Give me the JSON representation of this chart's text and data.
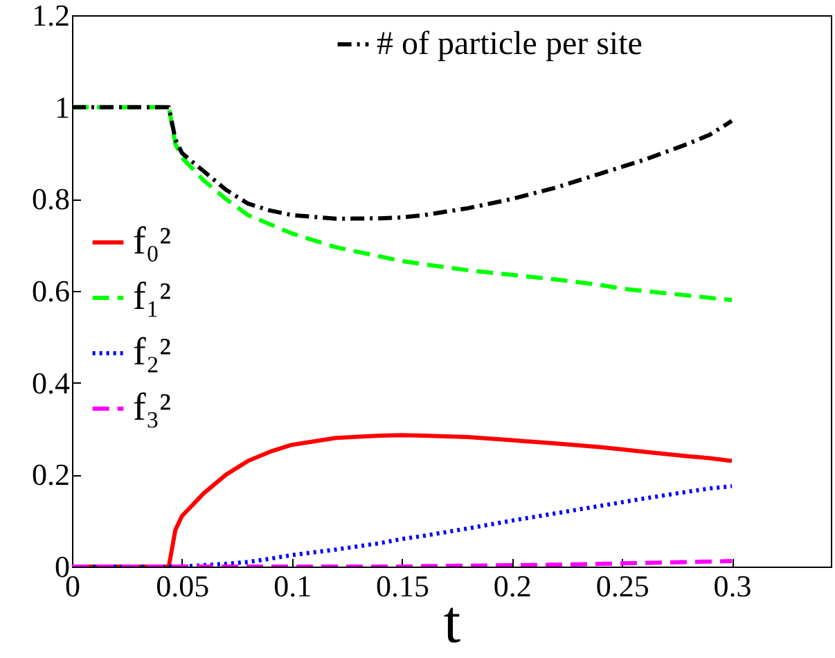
{
  "chart_data": {
    "type": "line",
    "xlabel": "t",
    "x": [
      0,
      0.02,
      0.044,
      0.047,
      0.05,
      0.06,
      0.07,
      0.08,
      0.09,
      0.1,
      0.12,
      0.14,
      0.15,
      0.16,
      0.18,
      0.2,
      0.22,
      0.24,
      0.25,
      0.26,
      0.28,
      0.29,
      0.3
    ],
    "series": [
      {
        "name": "f₀²",
        "color": "#ff0000",
        "line_style": "solid",
        "values": [
          0,
          0,
          0,
          0.08,
          0.11,
          0.16,
          0.2,
          0.23,
          0.25,
          0.265,
          0.28,
          0.285,
          0.286,
          0.285,
          0.282,
          0.275,
          0.268,
          0.26,
          0.255,
          0.25,
          0.24,
          0.236,
          0.23
        ]
      },
      {
        "name": "f₁²",
        "color": "#00ff00",
        "line_style": "dashed",
        "values": [
          1,
          1,
          1,
          0.92,
          0.89,
          0.84,
          0.8,
          0.765,
          0.745,
          0.725,
          0.695,
          0.675,
          0.665,
          0.658,
          0.645,
          0.635,
          0.625,
          0.613,
          0.605,
          0.6,
          0.59,
          0.585,
          0.58
        ]
      },
      {
        "name": "f₂²",
        "color": "#0000ff",
        "line_style": "dotted",
        "values": [
          0,
          0,
          0,
          0,
          0,
          0.003,
          0.006,
          0.01,
          0.017,
          0.025,
          0.037,
          0.051,
          0.06,
          0.067,
          0.083,
          0.1,
          0.116,
          0.132,
          0.14,
          0.148,
          0.163,
          0.17,
          0.175
        ]
      },
      {
        "name": "f₃²",
        "color": "#ff00ff",
        "line_style": "dashed",
        "values": [
          0,
          0,
          0,
          0,
          0,
          0,
          0,
          0,
          0,
          0,
          0,
          0,
          0,
          0.001,
          0.002,
          0.003,
          0.004,
          0.006,
          0.007,
          0.008,
          0.01,
          0.011,
          0.012
        ]
      },
      {
        "name": "# of particle per site",
        "color": "#000000",
        "line_style": "dashdot",
        "values": [
          1,
          1,
          1,
          0.93,
          0.9,
          0.86,
          0.82,
          0.79,
          0.775,
          0.765,
          0.757,
          0.758,
          0.76,
          0.765,
          0.78,
          0.8,
          0.825,
          0.855,
          0.87,
          0.885,
          0.92,
          0.94,
          0.97
        ]
      }
    ],
    "xlim": [
      0,
      0.345
    ],
    "xticks": [
      0,
      0.05,
      0.1,
      0.15,
      0.2,
      0.25,
      0.3
    ],
    "ylim": [
      0,
      1.2
    ],
    "yticks": [
      0,
      0.2,
      0.4,
      0.6,
      0.8,
      1,
      1.2
    ],
    "legend": "left"
  }
}
